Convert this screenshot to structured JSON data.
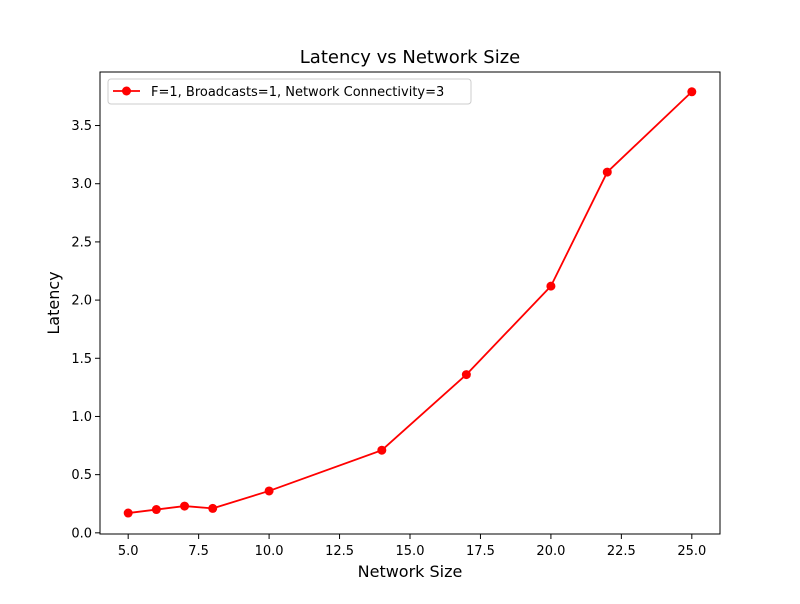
{
  "chart_data": {
    "type": "line",
    "title": "Latency vs Network Size",
    "xlabel": "Network Size",
    "ylabel": "Latency",
    "xlim": [
      4.0,
      26.0
    ],
    "ylim": [
      -0.01,
      3.96
    ],
    "xticks": [
      5.0,
      7.5,
      10.0,
      12.5,
      15.0,
      17.5,
      20.0,
      22.5,
      25.0
    ],
    "xtick_labels": [
      "5.0",
      "7.5",
      "10.0",
      "12.5",
      "15.0",
      "17.5",
      "20.0",
      "22.5",
      "25.0"
    ],
    "yticks": [
      0.0,
      0.5,
      1.0,
      1.5,
      2.0,
      2.5,
      3.0,
      3.5
    ],
    "ytick_labels": [
      "0.0",
      "0.5",
      "1.0",
      "1.5",
      "2.0",
      "2.5",
      "3.0",
      "3.5"
    ],
    "grid": false,
    "legend_position": "upper-left",
    "series": [
      {
        "name": "F=1, Broadcasts=1, Network Connectivity=3",
        "color": "#ff0000",
        "marker": "circle",
        "x": [
          5,
          6,
          7,
          8,
          10,
          14,
          17,
          20,
          22,
          25
        ],
        "y": [
          0.17,
          0.2,
          0.23,
          0.21,
          0.36,
          0.71,
          1.36,
          2.12,
          3.1,
          3.79
        ]
      }
    ]
  }
}
